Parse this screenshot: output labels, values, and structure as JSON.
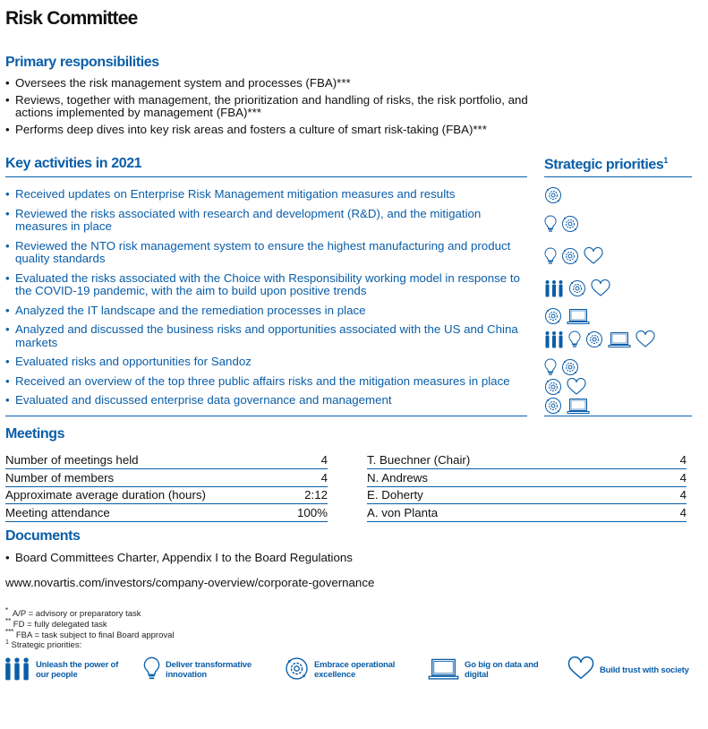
{
  "title": "Risk Committee",
  "primary": {
    "heading": "Primary responsibilities",
    "items": [
      "Oversees the risk management system and processes (FBA)***",
      "Reviews, together with management, the prioritization and handling of risks, the risk portfolio, and actions implemented by management (FBA)***",
      "Performs deep dives into key risk areas and fosters a culture of smart risk-taking (FBA)***"
    ]
  },
  "activities": {
    "heading": "Key activities in 2021",
    "priorities_heading": "Strategic priorities",
    "priorities_sup": "1",
    "items": [
      {
        "text": "Received updates on Enterprise Risk Management mitigation measures and results",
        "icons": [
          "gear"
        ]
      },
      {
        "text": "Reviewed the risks associated with research and development (R&D), and the mitigation measures in place",
        "icons": [
          "bulb",
          "gear"
        ]
      },
      {
        "text": "Reviewed the NTO risk management system to ensure the highest manufacturing and product quality standards",
        "icons": [
          "bulb",
          "gear",
          "heart"
        ]
      },
      {
        "text": "Evaluated the risks associated with the Choice with Responsibility working model in response to the COVID-19 pandemic, with the aim to build upon positive trends",
        "icons": [
          "people",
          "gear",
          "heart"
        ]
      },
      {
        "text": "Analyzed the IT landscape and the remediation processes in place",
        "icons": [
          "gear",
          "laptop"
        ]
      },
      {
        "text": "Analyzed and discussed the business risks and opportunities associated with the US and China markets",
        "icons": [
          "people",
          "bulb",
          "gear",
          "laptop",
          "heart"
        ]
      },
      {
        "text": "Evaluated risks and opportunities for Sandoz",
        "icons": [
          "bulb",
          "gear"
        ]
      },
      {
        "text": "Received an overview of the top three public affairs risks and the mitigation measures in place",
        "icons": [
          "gear",
          "heart"
        ]
      },
      {
        "text": "Evaluated and discussed enterprise data governance and management",
        "icons": [
          "gear",
          "laptop"
        ]
      }
    ]
  },
  "meetings": {
    "heading": "Meetings",
    "stats": [
      {
        "label": "Number of meetings held",
        "value": "4"
      },
      {
        "label": "Number of members",
        "value": "4"
      },
      {
        "label": "Approximate average duration (hours)",
        "value": "2:12"
      },
      {
        "label": "Meeting attendance",
        "value": "100%"
      }
    ],
    "members": [
      {
        "name": "T. Buechner (Chair)",
        "value": "4"
      },
      {
        "name": "N. Andrews",
        "value": "4"
      },
      {
        "name": "E. Doherty",
        "value": "4"
      },
      {
        "name": "A. von Planta",
        "value": "4"
      }
    ]
  },
  "documents": {
    "heading": "Documents",
    "items": [
      "Board Committees Charter, Appendix I to the Board Regulations"
    ],
    "link": "www.novartis.com/investors/company-overview/corporate-governance"
  },
  "footnotes": [
    {
      "mark": "*",
      "text": "A/P = advisory or preparatory task"
    },
    {
      "mark": "**",
      "text": "FD = fully delegated task"
    },
    {
      "mark": "***",
      "text": "FBA = task subject to final Board approval"
    },
    {
      "mark": "1",
      "text": "Strategic priorities:"
    }
  ],
  "legend": [
    {
      "icon": "people",
      "label": "Unleash the power of our people"
    },
    {
      "icon": "bulb",
      "label": "Deliver transformative innovation"
    },
    {
      "icon": "gear",
      "label": "Embrace operational excellence"
    },
    {
      "icon": "laptop",
      "label": "Go big on data and digital"
    },
    {
      "icon": "heart",
      "label": "Build trust with society"
    }
  ],
  "colors": {
    "accent": "#0a5ea8"
  }
}
